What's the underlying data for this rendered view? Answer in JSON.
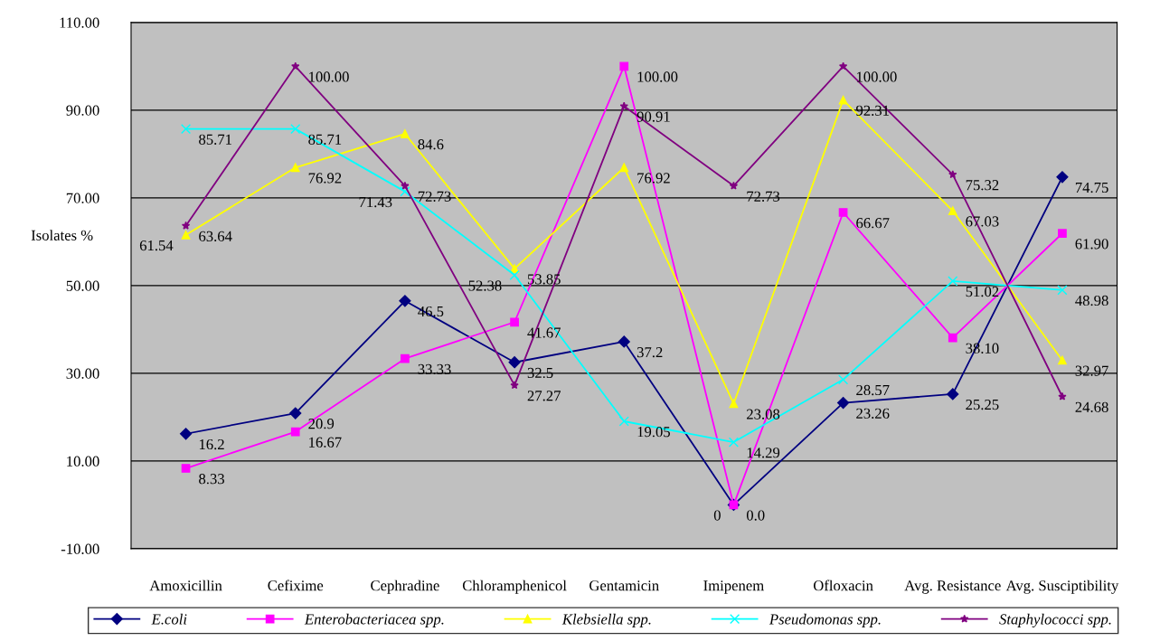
{
  "chart_data": {
    "type": "line",
    "ylabel": "Isolates %",
    "categories": [
      "Amoxicillin",
      "Cefixime",
      "Cephradine",
      "Chloramphenicol",
      "Gentamicin",
      "Imipenem",
      "Ofloxacin",
      "Avg. Resistance",
      "Avg. Susciptibility"
    ],
    "series": [
      {
        "name": "E.coli",
        "color": "#000080",
        "marker": "diamond",
        "values": [
          16.2,
          20.9,
          46.5,
          32.5,
          37.2,
          0.0,
          23.26,
          25.25,
          74.75
        ],
        "value_labels": [
          "16.2",
          "20.9",
          "46.5",
          "32.5",
          "37.2",
          "0.0",
          "23.26",
          "25.25",
          "74.75"
        ]
      },
      {
        "name": "Enterobacteriacea spp.",
        "color": "#ff00ff",
        "marker": "square",
        "values": [
          8.33,
          16.67,
          33.33,
          41.67,
          100.0,
          0,
          66.67,
          38.1,
          61.9
        ],
        "value_labels": [
          "8.33",
          "16.67",
          "33.33",
          "41.67",
          "100.00",
          "0",
          "66.67",
          "38.10",
          "61.90"
        ]
      },
      {
        "name": "Klebsiella spp.",
        "color": "#ffff00",
        "marker": "triangle",
        "values": [
          61.54,
          76.92,
          84.6,
          53.85,
          76.92,
          23.08,
          92.31,
          67.03,
          32.97
        ],
        "value_labels": [
          "61.54",
          "76.92",
          "84.6",
          "53.85",
          "76.92",
          "23.08",
          "92.31",
          "67.03",
          "32.97"
        ]
      },
      {
        "name": "Pseudomonas spp.",
        "color": "#00ffff",
        "marker": "cross",
        "values": [
          85.71,
          85.71,
          71.43,
          52.38,
          19.05,
          14.29,
          28.57,
          51.02,
          48.98
        ],
        "value_labels": [
          "85.71",
          "85.71",
          "71.43",
          "52.38",
          "19.05",
          "14.29",
          "28.57",
          "51.02",
          "48.98"
        ]
      },
      {
        "name": "Staphylococci spp.",
        "color": "#800080",
        "marker": "star",
        "values": [
          63.64,
          100.0,
          72.73,
          27.27,
          90.91,
          72.73,
          100.0,
          75.32,
          24.68
        ],
        "value_labels": [
          "63.64",
          "100.00",
          "72.73",
          "27.27",
          "90.91",
          "72.73",
          "100.00",
          "75.32",
          "24.68"
        ]
      }
    ],
    "ylim": [
      -10,
      110
    ],
    "yticks": [
      {
        "value": -10,
        "label": "-10.00"
      },
      {
        "value": 10,
        "label": "10.00"
      },
      {
        "value": 30,
        "label": "30.00"
      },
      {
        "value": 50,
        "label": "50.00"
      },
      {
        "value": 70,
        "label": "70.00"
      },
      {
        "value": 90,
        "label": "90.00"
      },
      {
        "value": 110,
        "label": "110.00"
      }
    ],
    "grid": "y",
    "legend": "bottom"
  }
}
